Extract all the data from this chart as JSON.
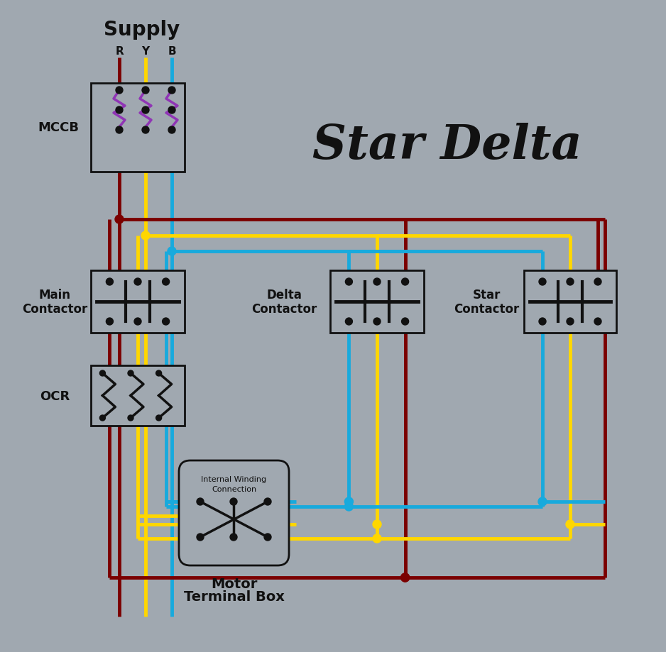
{
  "bg": "#a0a8b0",
  "title": "Star Delta",
  "supply": "Supply",
  "ryb": [
    "R",
    "Y",
    "B"
  ],
  "mccb": "MCCB",
  "main": [
    "Main",
    "Contactor"
  ],
  "delta": [
    "Delta",
    "Contactor"
  ],
  "star": [
    "Star",
    "Contactor"
  ],
  "ocr": "OCR",
  "mot": [
    "Motor",
    "Terminal Box"
  ],
  "sub": [
    "Internal Winding",
    "Connection"
  ],
  "cR": "#7B0000",
  "cY": "#FFD700",
  "cB": "#18AADD",
  "cP": "#9035B5",
  "cK": "#111111",
  "lw": 3.5
}
